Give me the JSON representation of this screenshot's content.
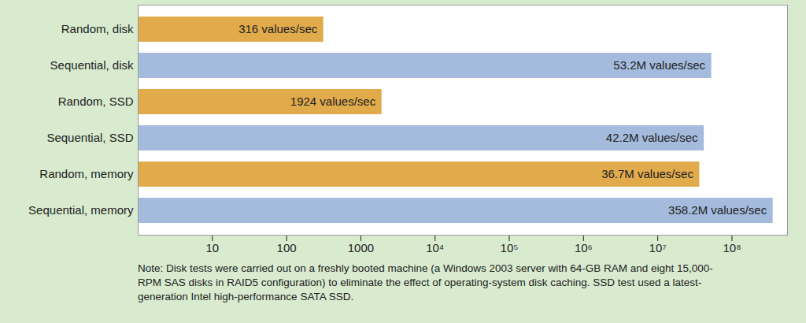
{
  "chart_data": {
    "type": "bar",
    "orientation": "horizontal",
    "log": "x",
    "grid": false,
    "data_labels": true,
    "categories": [
      "Random, disk",
      "Sequential, disk",
      "Random, SSD",
      "Sequential, SSD",
      "Random, memory",
      "Sequential, memory"
    ],
    "values": [
      316,
      53200000,
      1924,
      42200000,
      36700000,
      358200000
    ],
    "value_labels": [
      "316 values/sec",
      "53.2M values/sec",
      "1924 values/sec",
      "42.2M values/sec",
      "36.7M values/sec",
      "358.2M values/sec"
    ],
    "colors": [
      "#e1ab4c",
      "#a4bbdd",
      "#e1ab4c",
      "#a4bbdd",
      "#e1ab4c",
      "#a4bbdd"
    ],
    "xlim": [
      1,
      560000000
    ],
    "xticks": [
      10,
      100,
      1000,
      {
        "value": 10000,
        "label": "10⁴"
      },
      {
        "value": 100000,
        "label": "10⁵"
      },
      {
        "value": 1000000,
        "label": "10⁶"
      },
      {
        "value": 10000000,
        "label": "10⁷"
      },
      {
        "value": 100000000,
        "label": "10⁸"
      }
    ],
    "caption": "Note: Disk tests were carried out on a freshly booted machine (a Windows 2003 server with 64-GB RAM and eight 15,000-RPM SAS disks in RAID5 configuration) to eliminate the effect of operating-system disk caching. SSD test used a latest-generation Intel high-performance SATA SSD."
  }
}
